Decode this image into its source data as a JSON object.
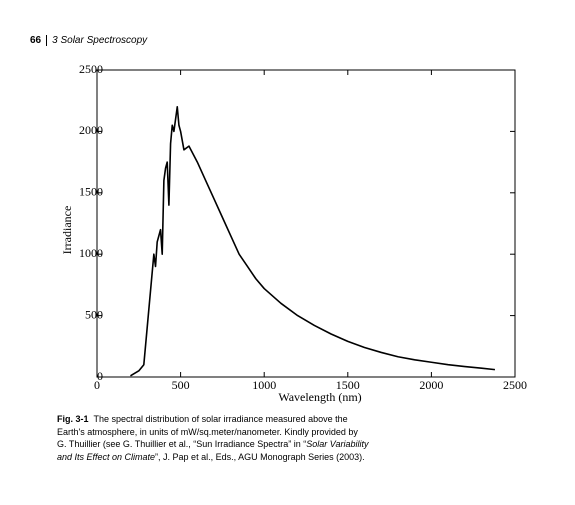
{
  "page_header": {
    "page_number": "66",
    "chapter": "3 Solar Spectroscopy"
  },
  "chart_data": {
    "type": "line",
    "x_label": "Wavelength (nm)",
    "y_label": "Irradiance",
    "x": [
      200,
      250,
      280,
      300,
      320,
      340,
      350,
      360,
      380,
      390,
      400,
      410,
      420,
      430,
      440,
      450,
      460,
      470,
      480,
      490,
      500,
      520,
      550,
      600,
      650,
      700,
      750,
      800,
      850,
      900,
      950,
      1000,
      1100,
      1200,
      1300,
      1400,
      1500,
      1600,
      1700,
      1800,
      1900,
      2000,
      2100,
      2200,
      2300,
      2380
    ],
    "values": [
      10,
      50,
      100,
      400,
      700,
      1000,
      900,
      1100,
      1200,
      1000,
      1600,
      1700,
      1750,
      1400,
      1900,
      2050,
      2000,
      2100,
      2200,
      2050,
      2000,
      1850,
      1880,
      1750,
      1600,
      1450,
      1300,
      1150,
      1000,
      900,
      800,
      720,
      600,
      500,
      420,
      350,
      290,
      240,
      200,
      165,
      140,
      120,
      100,
      85,
      72,
      60
    ],
    "color": "#000000",
    "xlim": [
      0,
      2500
    ],
    "ylim": [
      0,
      2500
    ],
    "xticks": [
      0,
      500,
      1000,
      1500,
      2000,
      2500
    ],
    "yticks": [
      0,
      500,
      1000,
      1500,
      2000,
      2500
    ]
  },
  "caption": {
    "label": "Fig. 3-1",
    "text": "The spectral distribution of solar irradiance measured above the Earth's atmosphere, in units of mW/sq.meter/nanometer. Kindly provided by G. Thuillier (see G. Thuillier et al., “Sun Irradiance Spectra” in “",
    "italic": "Solar Variability and Its Effect on Climate",
    "text_end": "”, J. Pap et al., Eds., AGU Monograph Series (2003)."
  }
}
